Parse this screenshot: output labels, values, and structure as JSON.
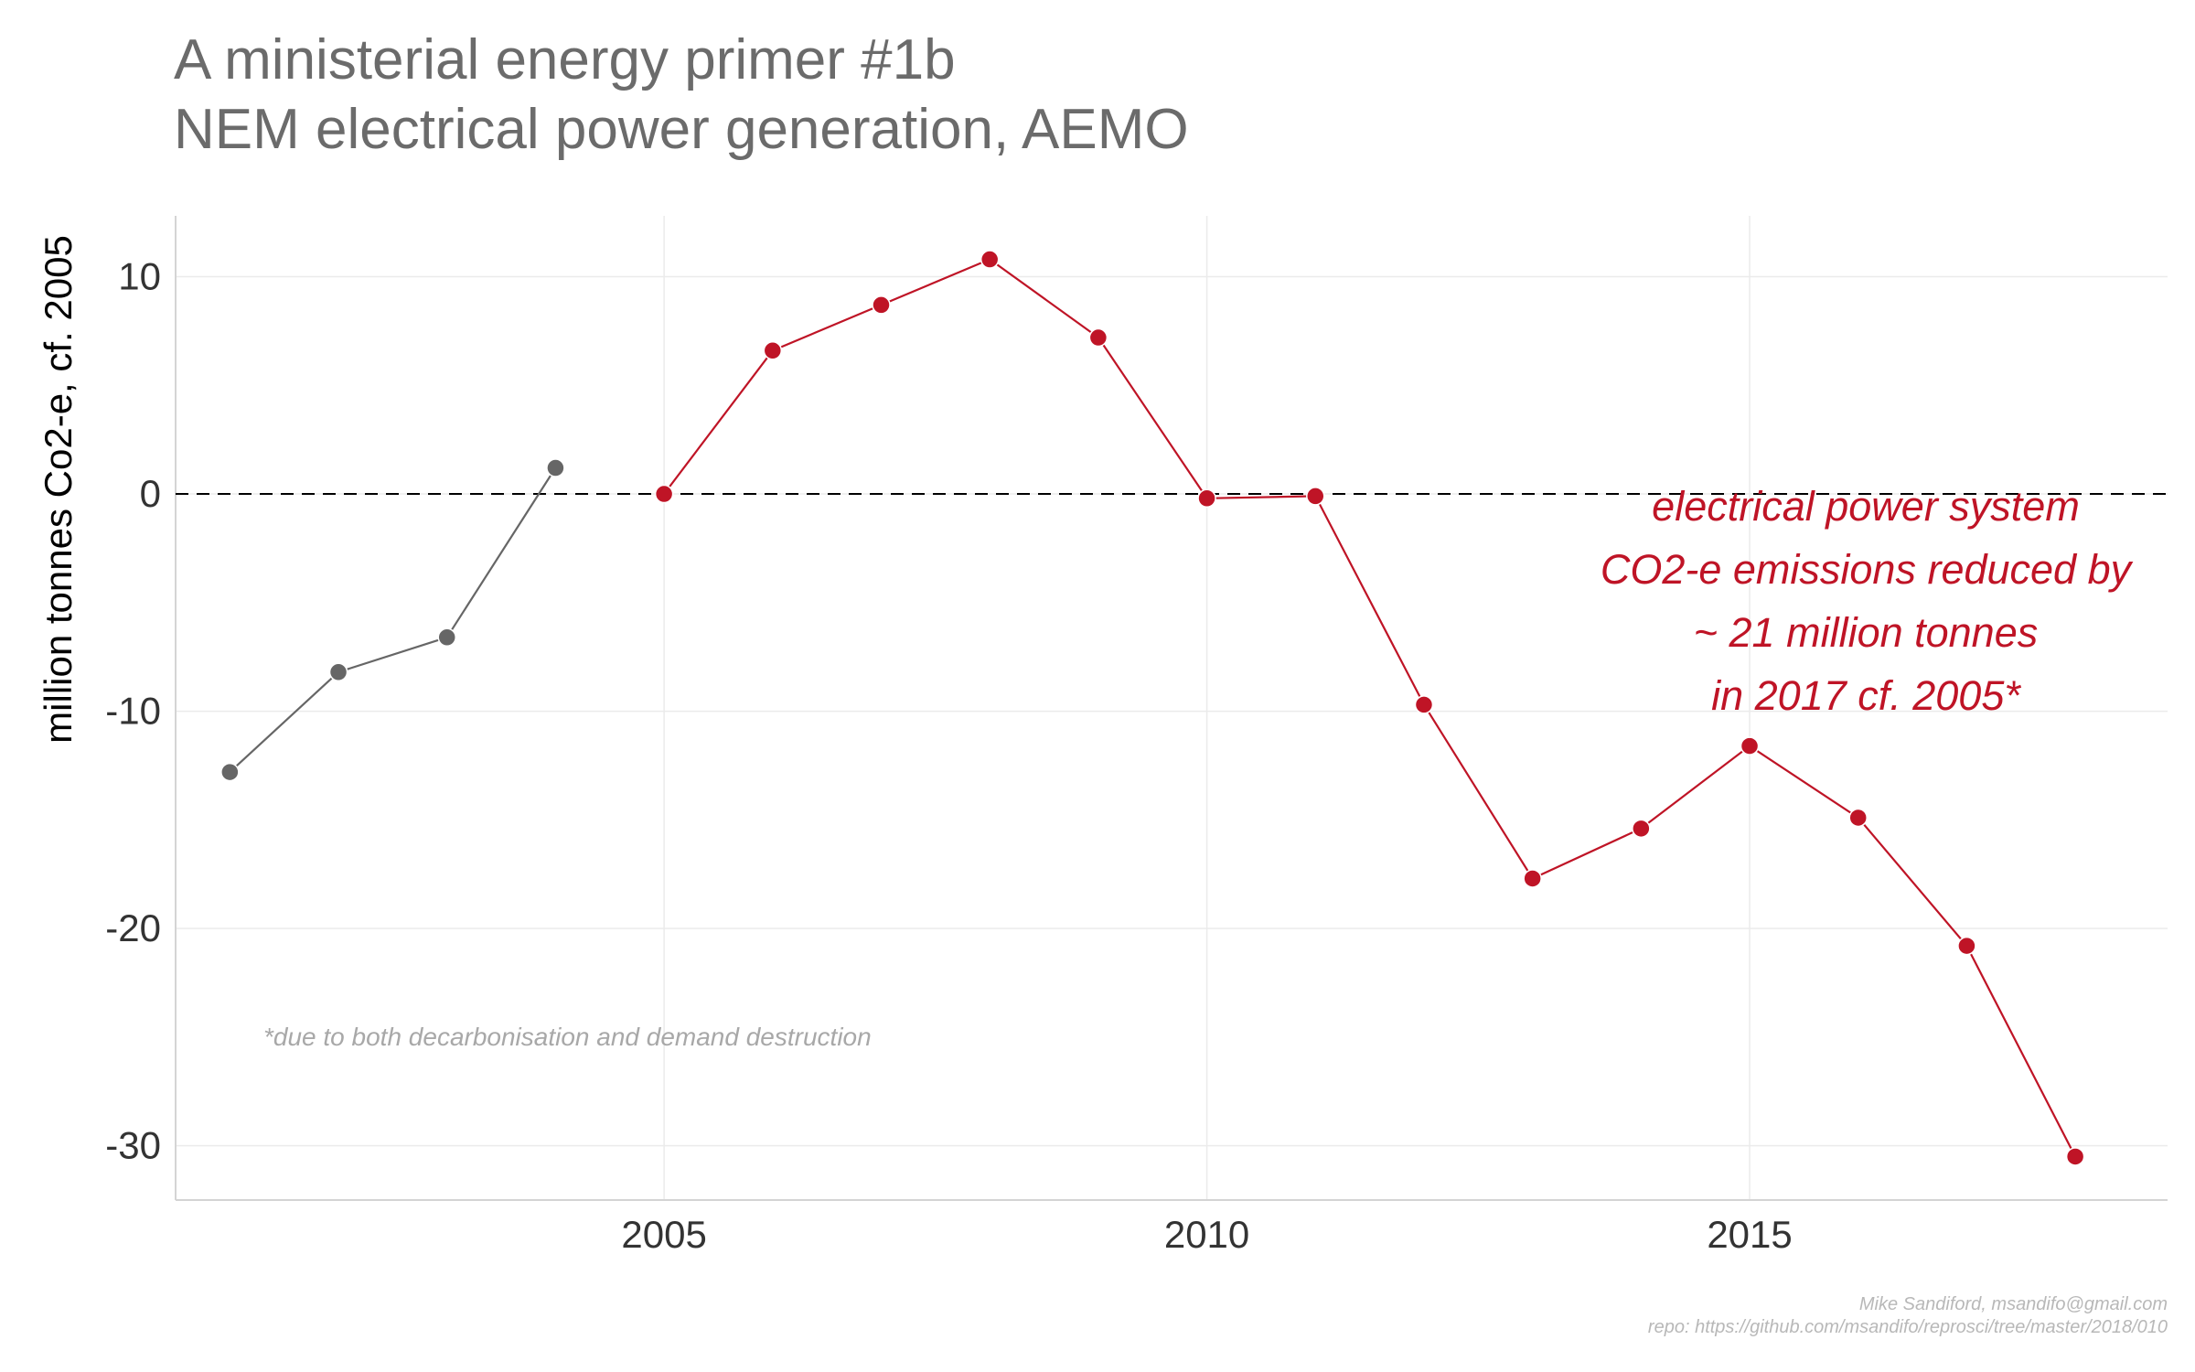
{
  "title_lines": [
    "A ministerial energy primer #1b",
    "NEM electrical power generation, AEMO"
  ],
  "footnote": "*due to both decarbonisation and demand destruction",
  "caption_lines": [
    "Mike Sandiford, msandifo@gmail.com",
    "repo: https://github.com/msandifo/reprosci/tree/master/2018/010"
  ],
  "colors": {
    "highlight": "#bf1426",
    "muted": "#666666",
    "grid": "#ebebeb",
    "axis": "#d4d4d4",
    "reference": "#000000"
  },
  "chart_data": {
    "type": "line",
    "title": "A ministerial energy primer #1b\nNEM electrical power generation, AEMO",
    "xlabel": "",
    "ylabel": "million tonnes Co2-e, cf. 2005",
    "xlim": [
      2000.5,
      2018.85
    ],
    "ylim": [
      -32.5,
      12.8
    ],
    "x_ticks": [
      2005,
      2010,
      2015
    ],
    "y_ticks": [
      10,
      0,
      -10,
      -20,
      -30
    ],
    "grid": true,
    "reference_line": {
      "y": 0,
      "style": "dashed"
    },
    "series": [
      {
        "color": "#666666",
        "points": [
          {
            "x": 2001,
            "y": -12.8
          },
          {
            "x": 2002,
            "y": -8.2
          },
          {
            "x": 2003,
            "y": -6.6
          },
          {
            "x": 2004,
            "y": 1.2
          }
        ]
      },
      {
        "color": "#bf1426",
        "points": [
          {
            "x": 2005,
            "y": 0.0
          },
          {
            "x": 2006,
            "y": 6.6
          },
          {
            "x": 2007,
            "y": 8.7
          },
          {
            "x": 2008,
            "y": 10.8
          },
          {
            "x": 2009,
            "y": 7.2
          },
          {
            "x": 2010,
            "y": -0.2
          },
          {
            "x": 2011,
            "y": -0.1
          },
          {
            "x": 2012,
            "y": -9.7
          },
          {
            "x": 2013,
            "y": -17.7
          },
          {
            "x": 2014,
            "y": -15.4
          },
          {
            "x": 2015,
            "y": -11.6
          },
          {
            "x": 2016,
            "y": -14.9
          },
          {
            "x": 2017,
            "y": -20.8
          },
          {
            "x": 2018,
            "y": -30.5
          }
        ]
      }
    ],
    "annotation": {
      "lines": [
        "electrical power system",
        "CO2-e emissions reduced by",
        "~ 21 million tonnes",
        "in 2017  cf. 2005*"
      ],
      "color": "#bf1426"
    }
  }
}
